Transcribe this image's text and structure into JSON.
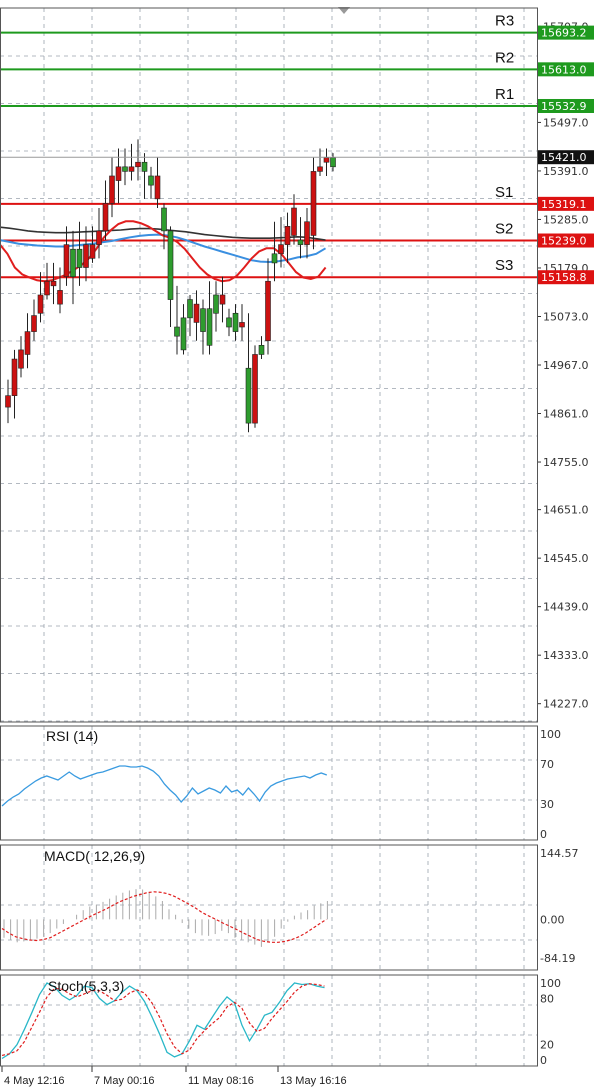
{
  "colors": {
    "bull": "#2e9c2e",
    "bear": "#cc1111",
    "resistance": "#1e9a1e",
    "support": "#dd1111",
    "ma_fast": "#e01e1e",
    "ma_mid": "#3a8fe0",
    "ma_slow": "#333333",
    "rsi": "#3a9be0",
    "macd_hist": "#aaaaaa",
    "macd_signal": "#e01e1e",
    "stoch_main": "#29b7c8",
    "stoch_signal": "#e01e1e",
    "price_tag": "#111111"
  },
  "chart_data": [
    {
      "type": "candlestick",
      "name": "main",
      "ylim": [
        14187,
        15747
      ],
      "y_ticks": [
        "15707.0",
        "15497.0",
        "15391.0",
        "15285.0",
        "15179.0",
        "15073.0",
        "14967.0",
        "14861.0",
        "14755.0",
        "14651.0",
        "14545.0",
        "14439.0",
        "14333.0",
        "14227.0"
      ],
      "current_price": "15421.0",
      "levels": [
        {
          "label": "R3",
          "value": 15693.2,
          "tag": "15693.2",
          "kind": "resistance"
        },
        {
          "label": "R2",
          "value": 15613.0,
          "tag": "15613.0",
          "kind": "resistance"
        },
        {
          "label": "R1",
          "value": 15532.9,
          "tag": "15532.9",
          "kind": "resistance"
        },
        {
          "label": "S1",
          "value": 15319.1,
          "tag": "15319.1",
          "kind": "support"
        },
        {
          "label": "S2",
          "value": 15239.0,
          "tag": "15239.0",
          "kind": "support"
        },
        {
          "label": "S3",
          "value": 15158.8,
          "tag": "15158.8",
          "kind": "support"
        }
      ],
      "candles": [
        [
          14900,
          14935,
          14840,
          14875
        ],
        [
          14980,
          15000,
          14850,
          14900
        ],
        [
          15000,
          15030,
          14940,
          14960
        ],
        [
          15040,
          15080,
          14960,
          14990
        ],
        [
          15075,
          15110,
          15020,
          15040
        ],
        [
          15120,
          15170,
          15060,
          15080
        ],
        [
          15150,
          15190,
          15110,
          15120
        ],
        [
          15150,
          15190,
          15100,
          15140
        ],
        [
          15130,
          15180,
          15080,
          15100
        ],
        [
          15230,
          15270,
          15140,
          15160
        ],
        [
          15160,
          15260,
          15100,
          15220
        ],
        [
          15180,
          15280,
          15140,
          15220
        ],
        [
          15230,
          15270,
          15150,
          15180
        ],
        [
          15230,
          15270,
          15190,
          15200
        ],
        [
          15260,
          15310,
          15200,
          15230
        ],
        [
          15320,
          15370,
          15240,
          15260
        ],
        [
          15380,
          15420,
          15290,
          15320
        ],
        [
          15400,
          15440,
          15320,
          15370
        ],
        [
          15390,
          15440,
          15360,
          15400
        ],
        [
          15400,
          15450,
          15370,
          15390
        ],
        [
          15410,
          15460,
          15370,
          15400
        ],
        [
          15390,
          15430,
          15330,
          15410
        ],
        [
          15360,
          15400,
          15330,
          15380
        ],
        [
          15380,
          15420,
          15310,
          15330
        ],
        [
          15260,
          15320,
          15220,
          15310
        ],
        [
          15110,
          15270,
          15050,
          15260
        ],
        [
          15030,
          15140,
          14990,
          15050
        ],
        [
          15000,
          15100,
          14990,
          15070
        ],
        [
          15070,
          15120,
          15030,
          15110
        ],
        [
          15100,
          15130,
          15020,
          15060
        ],
        [
          15040,
          15110,
          14990,
          15090
        ],
        [
          15010,
          15150,
          14990,
          15090
        ],
        [
          15080,
          15150,
          15040,
          15120
        ],
        [
          15120,
          15160,
          15060,
          15100
        ],
        [
          15050,
          15090,
          15030,
          15070
        ],
        [
          15040,
          15100,
          15020,
          15080
        ],
        [
          15060,
          15100,
          15020,
          15050
        ],
        [
          14840,
          15080,
          14820,
          14960
        ],
        [
          14990,
          15010,
          14830,
          14840
        ],
        [
          14990,
          15030,
          14980,
          15010
        ],
        [
          15150,
          15200,
          14990,
          15020
        ],
        [
          15190,
          15280,
          15150,
          15210
        ],
        [
          15230,
          15290,
          15180,
          15210
        ],
        [
          15270,
          15300,
          15190,
          15230
        ],
        [
          15310,
          15340,
          15230,
          15250
        ],
        [
          15230,
          15290,
          15200,
          15240
        ],
        [
          15280,
          15310,
          15200,
          15230
        ],
        [
          15390,
          15420,
          15220,
          15250
        ],
        [
          15400,
          15440,
          15380,
          15390
        ],
        [
          15420,
          15440,
          15380,
          15410
        ],
        [
          15400,
          15430,
          15390,
          15420
        ]
      ],
      "ma_fast": [
        15230,
        15210,
        15180,
        15165,
        15158,
        15152,
        15150,
        15152,
        15158,
        15165,
        15175,
        15185,
        15200,
        15220,
        15245,
        15262,
        15275,
        15281,
        15281,
        15277,
        15270,
        15260,
        15250,
        15245,
        15235,
        15220,
        15200,
        15180,
        15165,
        15155,
        15150,
        15152,
        15162,
        15180,
        15200,
        15215,
        15222,
        15222,
        15210,
        15190,
        15170,
        15158,
        15155,
        15160,
        15180
      ],
      "ma_mid": [
        15240,
        15236,
        15232,
        15230,
        15228,
        15227,
        15226,
        15226,
        15228,
        15230,
        15232,
        15235,
        15238,
        15242,
        15246,
        15249,
        15251,
        15252,
        15250,
        15246,
        15240,
        15233,
        15226,
        15220,
        15214,
        15208,
        15202,
        15196,
        15193,
        15192,
        15194,
        15197,
        15202,
        15205,
        15210,
        15222
      ],
      "ma_slow": [
        15268,
        15266,
        15263,
        15260,
        15258,
        15257,
        15256,
        15256,
        15257,
        15258,
        15259,
        15260,
        15261,
        15262,
        15264,
        15265,
        15265,
        15264,
        15262,
        15260,
        15258,
        15255,
        15252,
        15250,
        15248,
        15246,
        15245,
        15244,
        15244,
        15244,
        15245,
        15246,
        15247,
        15246,
        15243,
        15240
      ]
    },
    {
      "type": "line",
      "name": "rsi",
      "title": "RSI (14)",
      "ylim": [
        0,
        100
      ],
      "y_ticks": [
        "100",
        "70",
        "30",
        "0"
      ],
      "values": [
        28,
        33,
        37,
        40,
        45,
        49,
        53,
        56,
        58,
        56,
        54,
        58,
        62,
        58,
        55,
        57,
        59,
        61,
        62,
        64,
        66,
        68,
        68,
        67,
        67,
        68,
        66,
        63,
        58,
        50,
        44,
        39,
        32,
        38,
        46,
        40,
        43,
        46,
        44,
        41,
        48,
        42,
        44,
        39,
        46,
        40,
        33,
        42,
        48,
        51,
        53,
        55,
        56,
        57,
        58,
        56,
        59,
        61,
        59
      ],
      "sample_step": 6
    },
    {
      "type": "bar+line",
      "name": "macd",
      "title": "MACD( 12,26,9)",
      "ylim": [
        -84.19,
        144.57
      ],
      "y_ticks": [
        "144.57",
        "0.00",
        "-84.19"
      ],
      "histogram": [
        -40,
        -45,
        -50,
        -48,
        -46,
        -42,
        -38,
        -30,
        -20,
        -10,
        0,
        10,
        20,
        28,
        32,
        38,
        45,
        52,
        58,
        63,
        66,
        65,
        60,
        50,
        40,
        22,
        10,
        -8,
        -20,
        -30,
        -35,
        -36,
        -32,
        -25,
        -30,
        -40,
        -45,
        -50,
        -55,
        -60,
        -50,
        -38,
        -20,
        -5,
        8,
        15,
        20,
        30,
        35,
        40
      ],
      "signal": [
        -20,
        -30,
        -38,
        -42,
        -45,
        -46,
        -44,
        -40,
        -32,
        -24,
        -16,
        -8,
        0,
        8,
        15,
        22,
        30,
        38,
        44,
        50,
        54,
        58,
        60,
        59,
        56,
        50,
        42,
        34,
        25,
        15,
        7,
        0,
        -8,
        -15,
        -22,
        -30,
        -37,
        -44,
        -48,
        -50,
        -50,
        -48,
        -44,
        -38,
        -30,
        -20,
        -10,
        0
      ]
    },
    {
      "type": "line",
      "name": "stoch",
      "title": "Stoch(5,3,3)",
      "ylim": [
        0,
        100
      ],
      "y_ticks": [
        "100",
        "80",
        "20",
        "0"
      ],
      "main": [
        2,
        8,
        20,
        40,
        62,
        85,
        100,
        95,
        84,
        78,
        84,
        96,
        94,
        80,
        72,
        77,
        88,
        96,
        90,
        76,
        56,
        34,
        10,
        4,
        8,
        25,
        45,
        40,
        55,
        70,
        82,
        74,
        45,
        25,
        40,
        58,
        62,
        75,
        90,
        100,
        98,
        99,
        96,
        94
      ],
      "signal": [
        6,
        8,
        12,
        24,
        43,
        62,
        82,
        93,
        92,
        86,
        82,
        86,
        90,
        90,
        84,
        77,
        79,
        87,
        91,
        87,
        74,
        56,
        34,
        17,
        8,
        13,
        28,
        38,
        47,
        55,
        69,
        75,
        67,
        48,
        37,
        41,
        54,
        65,
        76,
        88,
        96,
        99,
        98,
        96
      ],
      "x_labels": [
        "4 May 12:16",
        "7 May 00:16",
        "11 May 08:16",
        "13 May 16:16"
      ]
    }
  ]
}
